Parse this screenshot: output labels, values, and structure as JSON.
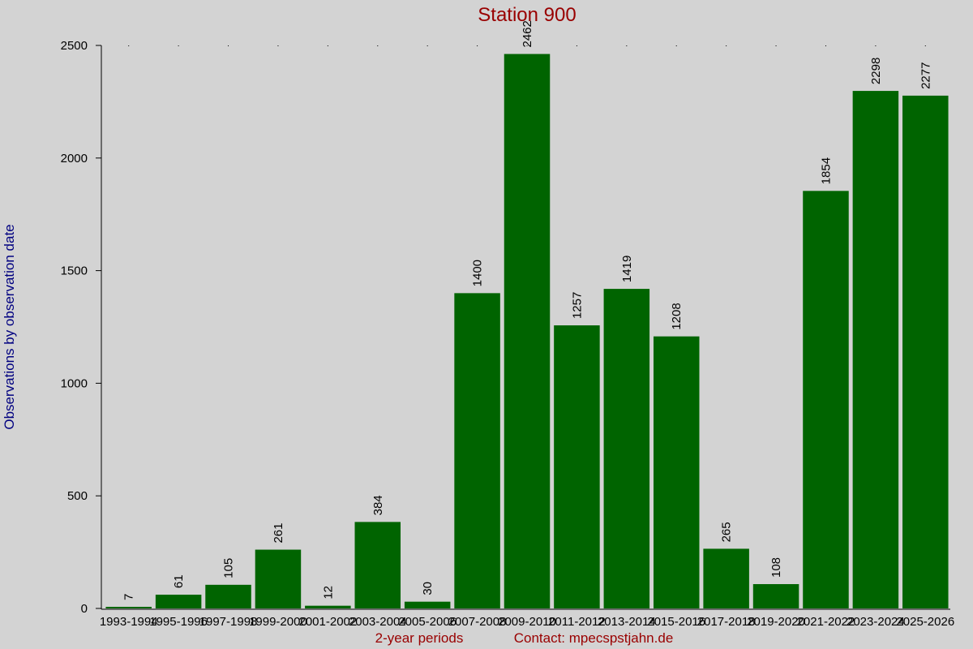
{
  "chart_data": {
    "type": "bar",
    "title": "Station 900",
    "x_label": "2-year periods",
    "contact": "Contact: mpecspstjahn.de",
    "y_label": "Observations by observation date",
    "categories": [
      "1993-1994",
      "1995-1996",
      "1997-1998",
      "1999-2000",
      "2001-2002",
      "2003-2004",
      "2005-2006",
      "2007-2008",
      "2009-2010",
      "2011-2012",
      "2013-2014",
      "2015-2016",
      "2017-2018",
      "2019-2020",
      "2021-2022",
      "2023-2024",
      "2025-2026"
    ],
    "values": [
      7,
      61,
      105,
      261,
      12,
      384,
      30,
      1400,
      2462,
      1257,
      1419,
      1208,
      265,
      108,
      1854,
      2298,
      2277
    ],
    "color": "#006400",
    "ylim": [
      0,
      2500
    ],
    "yticks": [
      0,
      500,
      1000,
      1500,
      2000,
      2500
    ]
  }
}
